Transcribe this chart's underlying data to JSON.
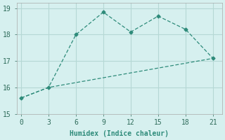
{
  "line1_x": [
    0,
    3,
    6,
    9,
    12,
    15,
    18,
    21
  ],
  "line1_y": [
    15.6,
    16.0,
    18.0,
    18.85,
    18.1,
    18.7,
    18.2,
    17.1
  ],
  "line2_x": [
    0,
    3,
    21
  ],
  "line2_y": [
    15.6,
    16.0,
    17.1
  ],
  "line_color": "#2e8b7a",
  "marker": "D",
  "marker_size": 2.5,
  "linestyle": "--",
  "xlim": [
    -0.5,
    22
  ],
  "ylim": [
    15,
    19.2
  ],
  "xticks": [
    0,
    3,
    6,
    9,
    12,
    15,
    18,
    21
  ],
  "yticks": [
    15,
    16,
    17,
    18,
    19
  ],
  "xlabel": "Humidex (Indice chaleur)",
  "bg_color": "#d6f0ef",
  "grid_color": "#b5d8d5",
  "tick_fontsize": 7,
  "xlabel_fontsize": 7
}
